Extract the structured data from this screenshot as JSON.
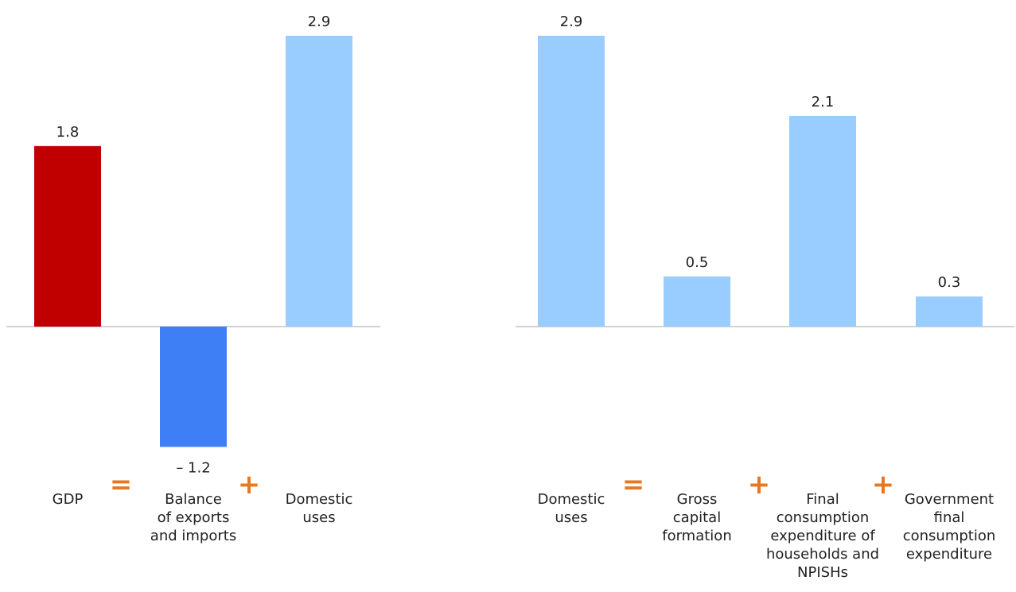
{
  "chart_data": [
    {
      "type": "bar",
      "categories": [
        [
          "GDP"
        ],
        [
          "Balance",
          "of exports",
          "and imports"
        ],
        [
          "Domestic",
          "uses"
        ]
      ],
      "values": [
        1.8,
        -1.2,
        2.9
      ],
      "value_labels": [
        "1.8",
        "– 1.2",
        "2.9"
      ],
      "colors": [
        "#c00000",
        "#3f7ff5",
        "#99ccff"
      ],
      "operators": [
        "=",
        "+"
      ],
      "ylim": [
        -1.2,
        2.9
      ]
    },
    {
      "type": "bar",
      "categories": [
        [
          "Domestic",
          "uses"
        ],
        [
          "Gross",
          "capital",
          "formation"
        ],
        [
          "Final",
          "consumption",
          "expenditure of",
          "households and",
          "NPISHs"
        ],
        [
          "Government",
          "final",
          "consumption",
          "expenditure"
        ]
      ],
      "values": [
        2.9,
        0.5,
        2.1,
        0.3
      ],
      "value_labels": [
        "2.9",
        "0.5",
        "2.1",
        "0.3"
      ],
      "colors": [
        "#99ccff",
        "#99ccff",
        "#99ccff",
        "#99ccff"
      ],
      "operators": [
        "=",
        "+",
        "+"
      ],
      "ylim": [
        0,
        2.9
      ]
    }
  ],
  "operator_color": "#e87722"
}
